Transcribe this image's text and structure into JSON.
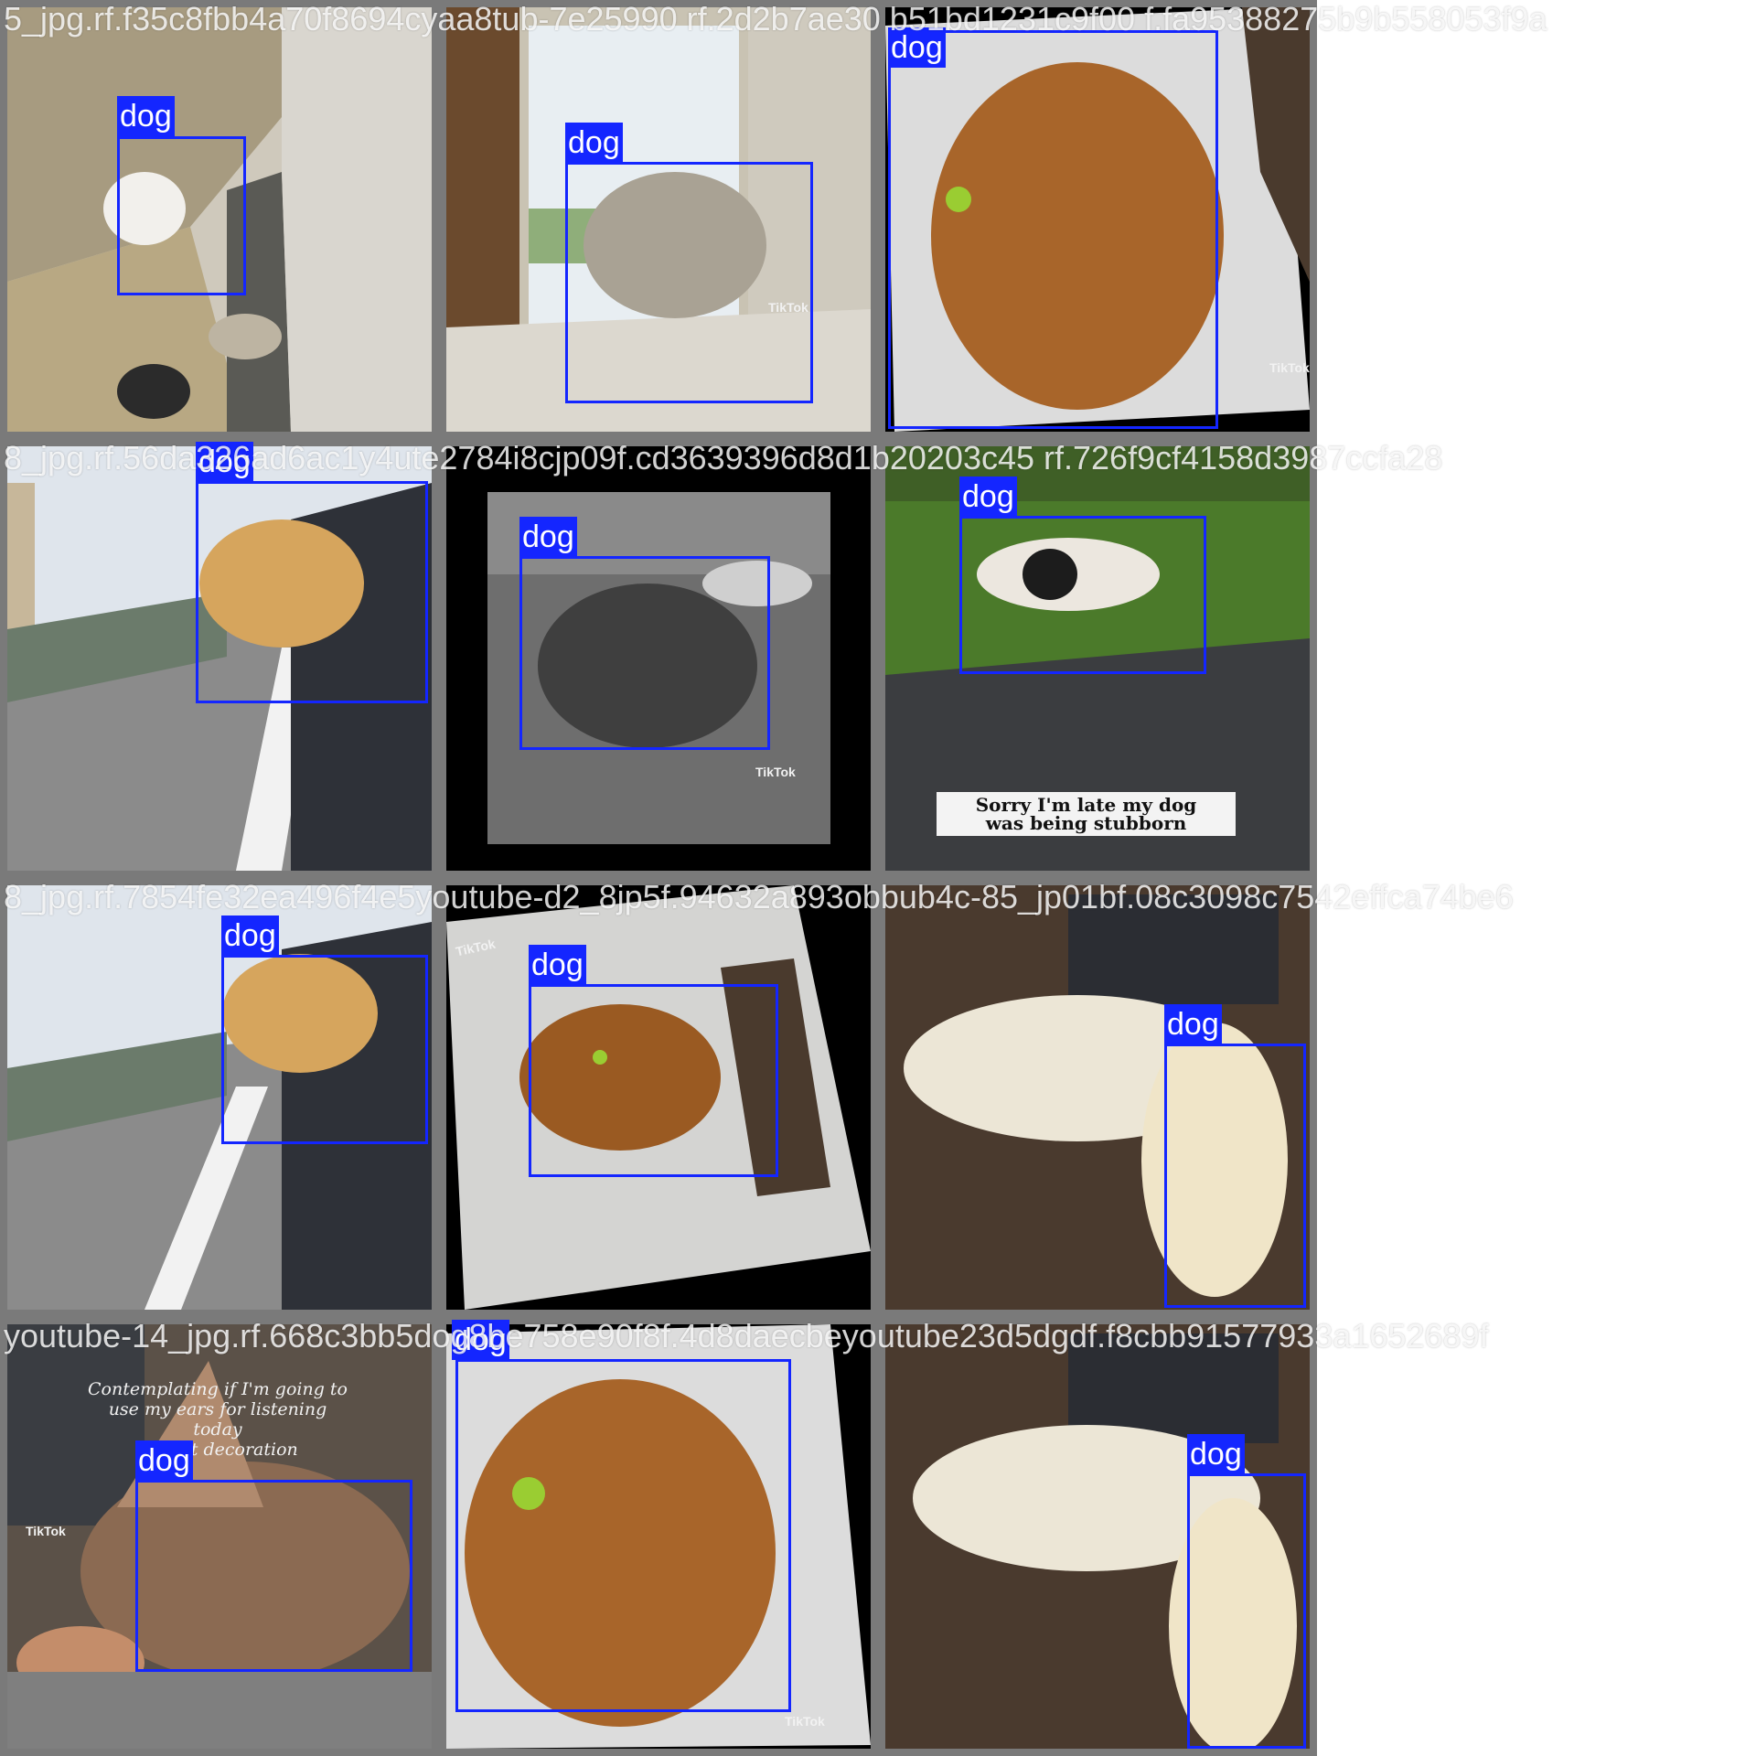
{
  "class_label": "dog",
  "colors": {
    "box": "#1426ff",
    "tile_border": "#7a7a7a"
  },
  "tiles": [
    {
      "filename": "5_jpg.rf.f35c8fbb4a70f8694cyaa8tub-7e25990 rf.2d2b7ae30 b51bd1231c9f00 f.fa95388275b9b558053f9a"
    },
    {
      "filename": "8_jpg.rf.56da326ad6ac1y4ute2784i8cjp09f.cd3639396d8d1b20203c45 rf.726f9cf4158d3987ccfa28"
    },
    {
      "filename": "8_jpg.rf.7854fe32ea496f4e5youtube-d2_8jp5f.94632a893obbub4c-85_jp01bf.08c3098c7542effca74be6"
    },
    {
      "filename": "youtube-14_jpg.rf.668c3bb5dog8be758e90f8f.4d8daecbeyoutube23d5dgdf.f8cbb91577933a1652689f"
    }
  ],
  "overlay_texts": {
    "tiktok": "TikTok",
    "tile6_caption_line1": "Sorry I'm late my dog",
    "tile6_caption_line2": "was being stubborn",
    "tile10_line1": "Contemplating if I'm going to",
    "tile10_line2": "use my ears for listening",
    "tile10_line3": "today",
    "tile10_line4": "Or just decoration"
  }
}
